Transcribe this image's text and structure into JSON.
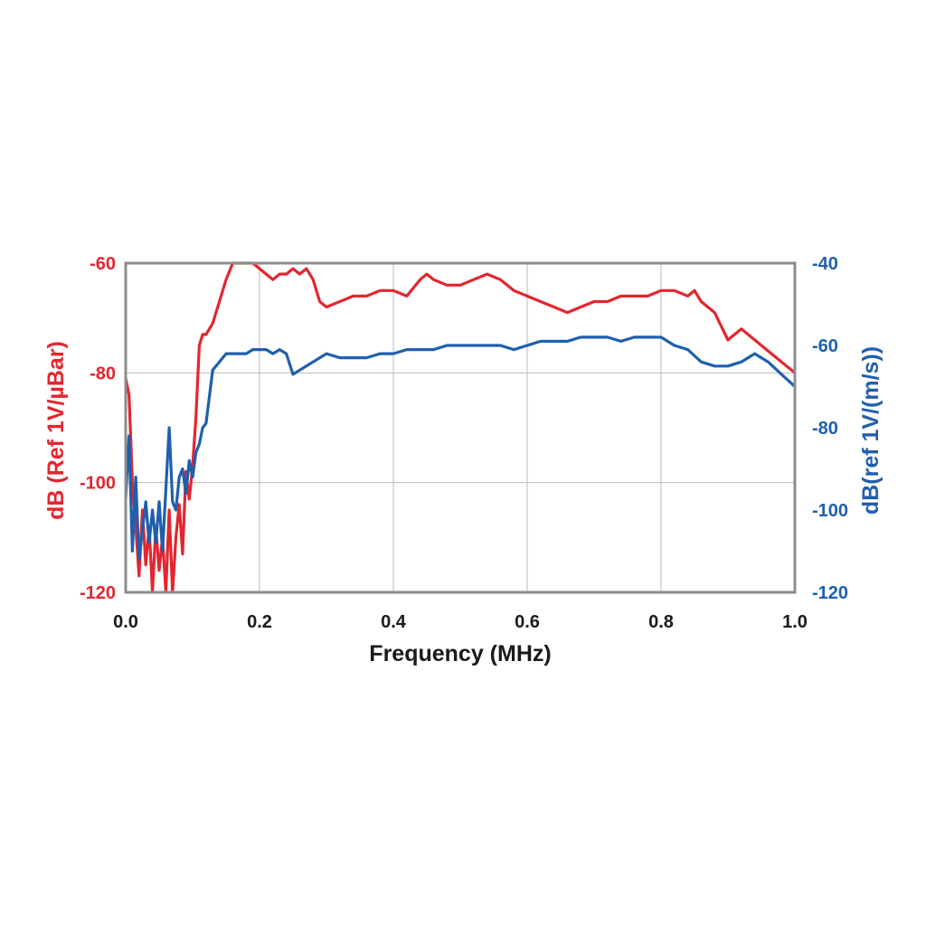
{
  "chart_data": {
    "type": "line",
    "title": "",
    "xlabel": "Frequency (MHz)",
    "ylabel_left": "dB (Ref 1V/µBar)",
    "ylabel_right": "dB(ref 1V/(m/s))",
    "xlim": [
      0.0,
      1.0
    ],
    "ylim_left": [
      -120,
      -60
    ],
    "ylim_right": [
      -120,
      -40
    ],
    "x_ticks": [
      "0.0",
      "0.2",
      "0.4",
      "0.6",
      "0.8",
      "1.0"
    ],
    "y_ticks_left": [
      "-60",
      "-80",
      "-100",
      "-120"
    ],
    "y_ticks_right": [
      "-40",
      "-60",
      "-80",
      "-100",
      "-120"
    ],
    "grid": true,
    "colors": {
      "left": "#e3262f",
      "right": "#1f5fad",
      "frame": "#8c8c8c",
      "grid": "#bbbbbb"
    },
    "series": [
      {
        "axis": "left",
        "x": [
          0.0,
          0.005,
          0.01,
          0.015,
          0.02,
          0.025,
          0.03,
          0.035,
          0.04,
          0.045,
          0.05,
          0.055,
          0.06,
          0.065,
          0.07,
          0.075,
          0.08,
          0.085,
          0.09,
          0.095,
          0.1,
          0.105,
          0.11,
          0.115,
          0.12,
          0.13,
          0.14,
          0.15,
          0.16,
          0.17,
          0.18,
          0.19,
          0.2,
          0.21,
          0.22,
          0.23,
          0.24,
          0.25,
          0.26,
          0.27,
          0.28,
          0.29,
          0.3,
          0.32,
          0.34,
          0.36,
          0.38,
          0.4,
          0.42,
          0.44,
          0.45,
          0.46,
          0.48,
          0.5,
          0.52,
          0.54,
          0.56,
          0.58,
          0.6,
          0.62,
          0.64,
          0.66,
          0.68,
          0.7,
          0.72,
          0.74,
          0.76,
          0.78,
          0.8,
          0.82,
          0.84,
          0.85,
          0.86,
          0.88,
          0.9,
          0.92,
          0.94,
          0.96,
          0.98,
          1.0
        ],
        "values": [
          -81,
          -84,
          -100,
          -108,
          -117,
          -105,
          -115,
          -108,
          -120,
          -108,
          -116,
          -110,
          -120,
          -105,
          -120,
          -110,
          -104,
          -113,
          -98,
          -103,
          -97,
          -88,
          -75,
          -73,
          -73,
          -71,
          -67,
          -63,
          -60,
          -60,
          -60,
          -60,
          -61,
          -62,
          -63,
          -62,
          -62,
          -61,
          -62,
          -61,
          -63,
          -67,
          -68,
          -67,
          -66,
          -66,
          -65,
          -65,
          -66,
          -63,
          -62,
          -63,
          -64,
          -64,
          -63,
          -62,
          -63,
          -65,
          -66,
          -67,
          -68,
          -69,
          -68,
          -67,
          -67,
          -66,
          -66,
          -66,
          -65,
          -65,
          -66,
          -65,
          -67,
          -69,
          -74,
          -72,
          -74,
          -76,
          -78,
          -80
        ]
      },
      {
        "axis": "right",
        "x": [
          0.0,
          0.005,
          0.01,
          0.015,
          0.02,
          0.025,
          0.03,
          0.035,
          0.04,
          0.045,
          0.05,
          0.055,
          0.06,
          0.065,
          0.07,
          0.075,
          0.08,
          0.085,
          0.09,
          0.095,
          0.1,
          0.105,
          0.11,
          0.115,
          0.12,
          0.13,
          0.14,
          0.15,
          0.16,
          0.17,
          0.18,
          0.19,
          0.2,
          0.21,
          0.22,
          0.23,
          0.24,
          0.25,
          0.26,
          0.27,
          0.28,
          0.3,
          0.32,
          0.34,
          0.36,
          0.38,
          0.4,
          0.42,
          0.44,
          0.46,
          0.48,
          0.5,
          0.52,
          0.54,
          0.56,
          0.58,
          0.6,
          0.62,
          0.64,
          0.66,
          0.68,
          0.7,
          0.72,
          0.74,
          0.76,
          0.78,
          0.8,
          0.82,
          0.84,
          0.86,
          0.88,
          0.9,
          0.92,
          0.94,
          0.96,
          0.98,
          1.0
        ],
        "values": [
          -97,
          -82,
          -110,
          -92,
          -112,
          -105,
          -98,
          -108,
          -100,
          -108,
          -98,
          -110,
          -95,
          -80,
          -98,
          -100,
          -92,
          -90,
          -96,
          -88,
          -92,
          -86,
          -84,
          -80,
          -79,
          -66,
          -64,
          -62,
          -62,
          -62,
          -62,
          -61,
          -61,
          -61,
          -62,
          -61,
          -62,
          -67,
          -66,
          -65,
          -64,
          -62,
          -63,
          -63,
          -63,
          -62,
          -62,
          -61,
          -61,
          -61,
          -60,
          -60,
          -60,
          -60,
          -60,
          -61,
          -60,
          -59,
          -59,
          -59,
          -58,
          -58,
          -58,
          -59,
          -58,
          -58,
          -58,
          -60,
          -61,
          -64,
          -65,
          -65,
          -64,
          -62,
          -64,
          -67,
          -70
        ]
      }
    ]
  }
}
